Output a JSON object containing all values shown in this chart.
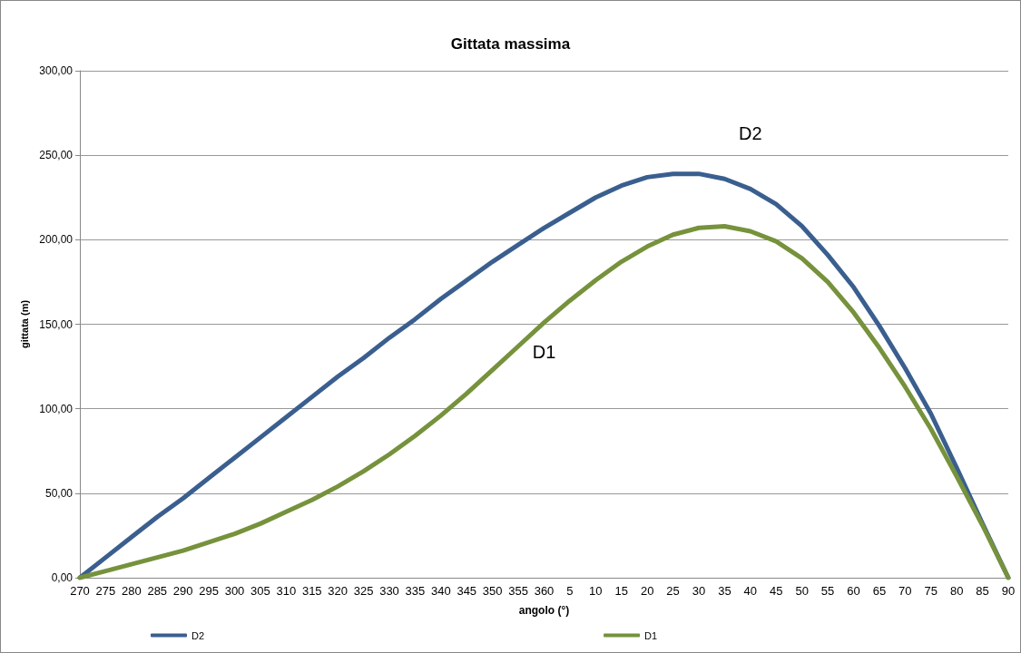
{
  "chart_data": {
    "type": "line",
    "title": "Gittata massima",
    "xlabel": "angolo (°)",
    "ylabel": "gittata (m)",
    "categories": [
      "270",
      "275",
      "280",
      "285",
      "290",
      "295",
      "300",
      "305",
      "310",
      "315",
      "320",
      "325",
      "330",
      "335",
      "340",
      "345",
      "350",
      "355",
      "360",
      "5",
      "10",
      "15",
      "20",
      "25",
      "30",
      "35",
      "40",
      "45",
      "50",
      "55",
      "60",
      "65",
      "70",
      "75",
      "80",
      "85",
      "90"
    ],
    "series": [
      {
        "name": "D2",
        "color": "#3a5f8f",
        "values": [
          0,
          12,
          24,
          36,
          47,
          59,
          71,
          83,
          95,
          107,
          119,
          130,
          142,
          153,
          165,
          176,
          187,
          197,
          207,
          216,
          225,
          232,
          237,
          239,
          239,
          236,
          230,
          221,
          208,
          191,
          172,
          149,
          124,
          97,
          65,
          32,
          0
        ]
      },
      {
        "name": "D1",
        "color": "#76923c",
        "values": [
          0,
          4,
          8,
          12,
          16,
          21,
          26,
          32,
          39,
          46,
          54,
          63,
          73,
          84,
          96,
          109,
          123,
          137,
          151,
          164,
          176,
          187,
          196,
          203,
          207,
          208,
          205,
          199,
          189,
          175,
          157,
          136,
          113,
          88,
          60,
          31,
          0
        ]
      }
    ],
    "ylim": [
      0,
      300
    ],
    "yticks": [
      {
        "value": 0,
        "label": "0,00"
      },
      {
        "value": 50,
        "label": "50,00"
      },
      {
        "value": 100,
        "label": "100,00"
      },
      {
        "value": 150,
        "label": "150,00"
      },
      {
        "value": 200,
        "label": "200,00"
      },
      {
        "value": 250,
        "label": "250,00"
      },
      {
        "value": 300,
        "label": "300,00"
      }
    ],
    "grid": "y",
    "legend": "bottom",
    "marker": "none",
    "line_style": "solid"
  }
}
